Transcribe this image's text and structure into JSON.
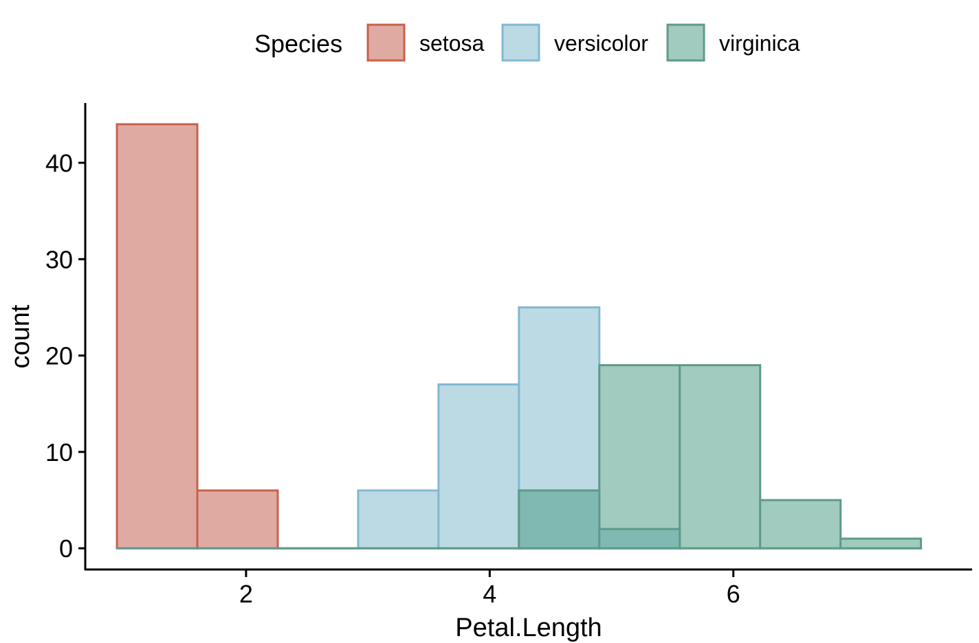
{
  "chart_data": {
    "type": "histogram",
    "xlabel": "Petal.Length",
    "ylabel": "count",
    "xlim": [
      0.68,
      7.96
    ],
    "ylim": [
      -2.2,
      46.2
    ],
    "x_ticks": [
      2,
      4,
      6
    ],
    "y_ticks": [
      0,
      10,
      20,
      30,
      40
    ],
    "bin_edges": [
      0.94,
      1.6,
      2.26,
      2.92,
      3.58,
      4.24,
      4.9,
      5.56,
      6.22,
      6.88,
      7.54
    ],
    "grid": false,
    "legend": {
      "title": "Species",
      "position": "top"
    },
    "series": [
      {
        "name": "setosa",
        "fill": "#dfaaa2",
        "stroke": "#c9604a",
        "counts": [
          44,
          6,
          0,
          0,
          0,
          0,
          0,
          0,
          0,
          0
        ]
      },
      {
        "name": "versicolor",
        "fill": "#bbdae4",
        "stroke": "#83b8d2",
        "counts": [
          0,
          0,
          0,
          6,
          17,
          25,
          2,
          0,
          0,
          0
        ]
      },
      {
        "name": "virginica",
        "fill": "#a1cbbf",
        "stroke": "#5e9a8a",
        "counts": [
          0,
          0,
          0,
          0,
          0,
          6,
          19,
          19,
          5,
          1
        ]
      }
    ],
    "overlap_fill": "#80b8b2"
  }
}
